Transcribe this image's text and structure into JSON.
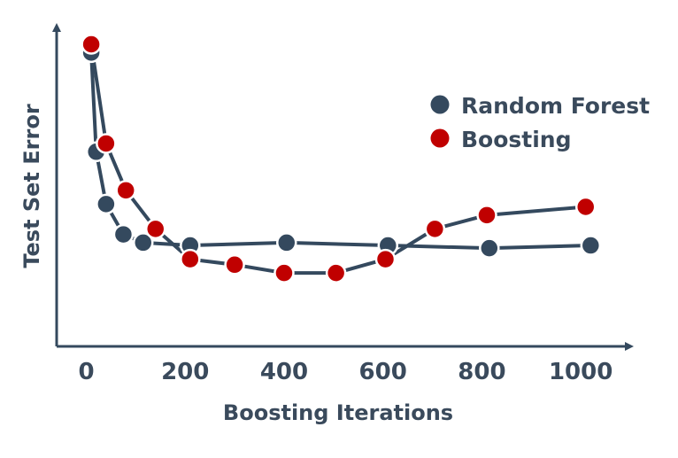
{
  "chart_data": {
    "type": "line",
    "xlabel": "Boosting Iterations",
    "ylabel": "Test Set Error",
    "xlim": [
      -60,
      1100
    ],
    "ylim": [
      0,
      1
    ],
    "xticks": [
      "0",
      "200",
      "400",
      "600",
      "800",
      "1000"
    ],
    "xtick_values": [
      0,
      200,
      400,
      600,
      800,
      1000
    ],
    "legend_position": "top-right",
    "series": [
      {
        "name": "Random Forest",
        "color": "#34495e",
        "x": [
          10,
          20,
          40,
          75,
          115,
          210,
          405,
          610,
          815,
          1020
        ],
        "y": [
          0.97,
          0.61,
          0.42,
          0.31,
          0.28,
          0.27,
          0.28,
          0.27,
          0.26,
          0.27
        ]
      },
      {
        "name": "Boosting",
        "color": "#c00000",
        "x": [
          10,
          40,
          80,
          140,
          210,
          300,
          400,
          505,
          605,
          705,
          810,
          1010
        ],
        "y": [
          1.0,
          0.64,
          0.47,
          0.33,
          0.22,
          0.2,
          0.17,
          0.17,
          0.22,
          0.33,
          0.38,
          0.41
        ]
      }
    ]
  }
}
